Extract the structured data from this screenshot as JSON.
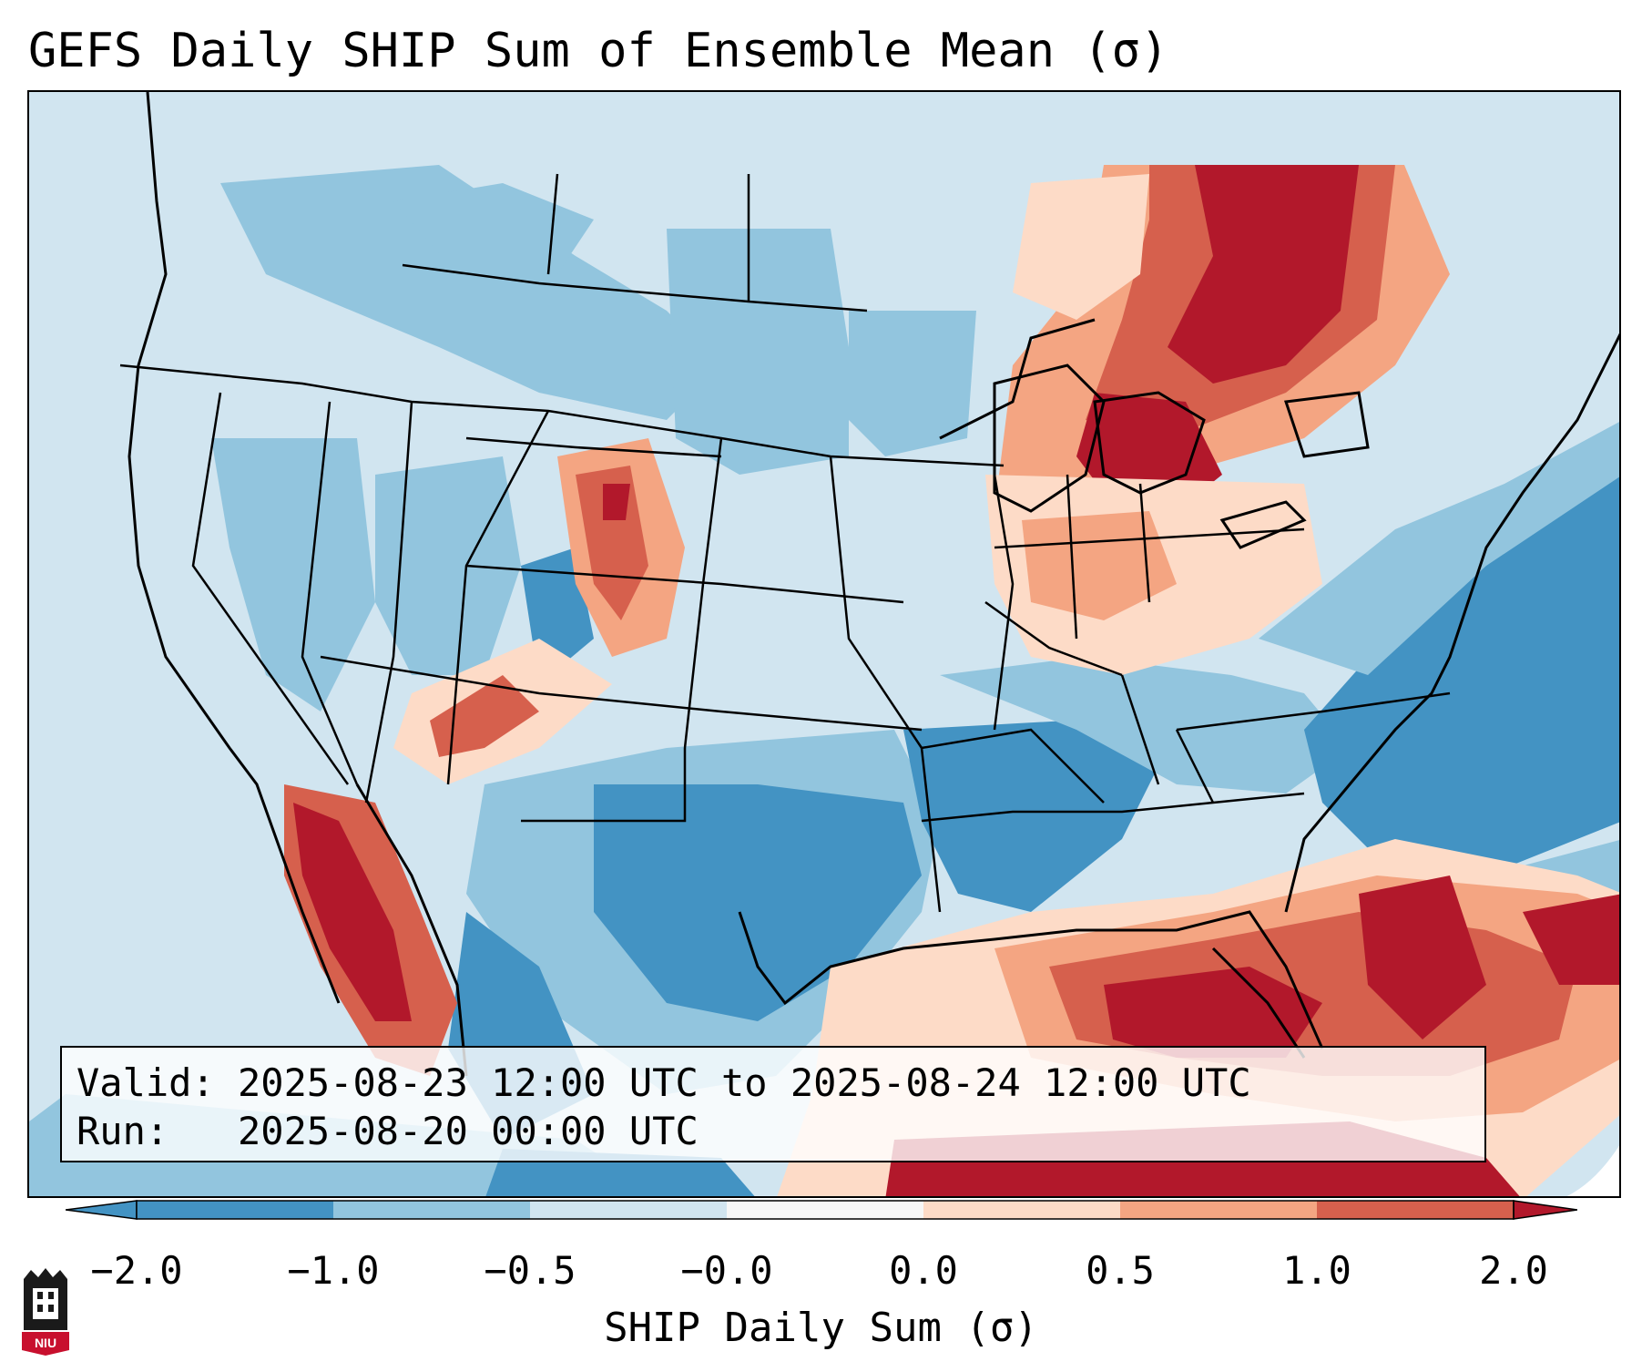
{
  "title": "GEFS Daily SHIP Sum of Ensemble Mean (σ)",
  "info": {
    "valid_label": "Valid:",
    "valid_value": "2025-08-23 12:00 UTC to 2025-08-24 12:00 UTC",
    "run_label": "Run:",
    "run_value": "2025-08-20 00:00 UTC"
  },
  "colorbar": {
    "label": "SHIP Daily Sum (σ)",
    "ticks": [
      "−2.0",
      "−1.0",
      "−0.5",
      "−0.0",
      "0.0",
      "0.5",
      "1.0",
      "2.0"
    ],
    "colors": [
      "#4393c3",
      "#92c5de",
      "#d1e5f0",
      "#f7f7f7",
      "#fddbc7",
      "#f4a582",
      "#d6604d",
      "#b2182b"
    ],
    "under_color": "#2166ac",
    "over_color": "#b2182b"
  },
  "logo": {
    "text": "NIU",
    "icon": "niu-logo-icon"
  },
  "palette": {
    "strong_neg": "#4393c3",
    "neg": "#92c5de",
    "weak_neg": "#d1e5f0",
    "weak_pos": "#fddbc7",
    "pos": "#f4a582",
    "strong_pos": "#d6604d",
    "max_pos": "#b2182b"
  }
}
